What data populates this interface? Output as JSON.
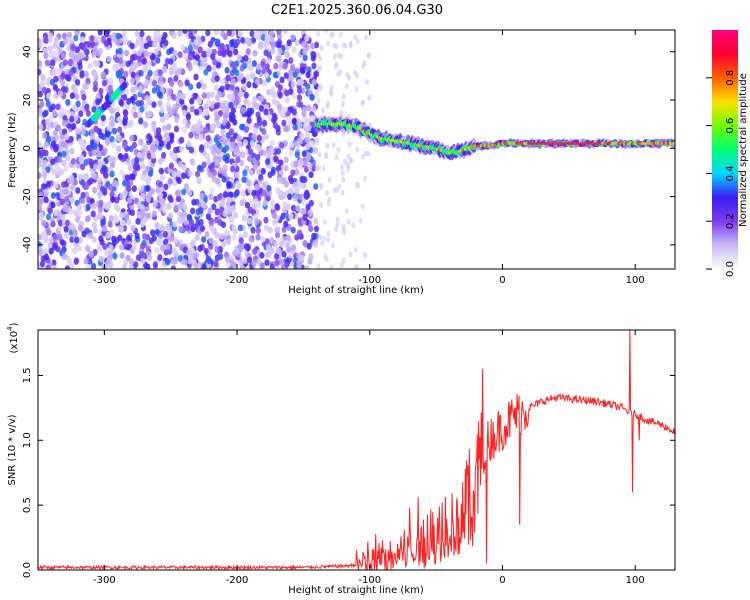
{
  "title": "C2E1.2025.360.06.04.G30",
  "chart_data": [
    {
      "type": "heatmap",
      "xlabel": "Height of straight line (km)",
      "ylabel": "Frequency (Hz)",
      "xlim": [
        -350,
        130
      ],
      "ylim": [
        -50,
        49
      ],
      "xticks": [
        -300,
        -200,
        -100,
        0,
        100
      ],
      "yticks": [
        -40,
        -20,
        0,
        20,
        40
      ],
      "colorbar": {
        "label": "Normalized spectral amplitude",
        "range": [
          0,
          1
        ],
        "ticks": [
          "0.0",
          "0.2",
          "0.4",
          "0.6",
          "0.8"
        ],
        "colors": [
          "#ffffff",
          "#c9b8f5",
          "#7a3cf0",
          "#3c1cf5",
          "#00d8ff",
          "#00ff70",
          "#70ff00",
          "#ffe000",
          "#ff6000",
          "#ff0030",
          "#ff0080"
        ]
      },
      "trace": {
        "x": [
          -140,
          -120,
          -110,
          -100,
          -90,
          -80,
          -70,
          -60,
          -50,
          -40,
          -30,
          -20,
          -10,
          0,
          20,
          40,
          60,
          80,
          100,
          120,
          130
        ],
        "y": [
          10,
          10,
          9,
          6,
          4,
          3,
          2,
          1,
          0,
          -2,
          -1,
          1,
          1,
          2,
          2,
          2,
          2,
          2,
          2,
          2,
          2
        ]
      },
      "diagonal_streak": {
        "x": [
          -312,
          -285
        ],
        "y": [
          10,
          26
        ]
      }
    },
    {
      "type": "line",
      "xlabel": "Height of straight line (km)",
      "ylabel": "SNR (10 * v/v)",
      "scale_label": "(x10",
      "scale_exp": "4",
      "xlim": [
        -350,
        130
      ],
      "ylim": [
        0,
        1.85
      ],
      "xticks": [
        -300,
        -200,
        -100,
        0,
        100
      ],
      "yticks": [
        "0.0",
        "0.5",
        "1.0",
        "1.5"
      ],
      "line_color": "#ff2020",
      "series": [
        {
          "x": [
            -350,
            -300,
            -250,
            -200,
            -150,
            -120,
            -110,
            -100,
            -90,
            -80,
            -70,
            -60,
            -50,
            -40,
            -30,
            -25,
            -20,
            -15,
            -10,
            0,
            10,
            20,
            30,
            40,
            50,
            60,
            70,
            80,
            90,
            95,
            100,
            110,
            120,
            130
          ],
          "y": [
            0.02,
            0.02,
            0.02,
            0.02,
            0.02,
            0.03,
            0.04,
            0.06,
            0.1,
            0.15,
            0.2,
            0.24,
            0.3,
            0.35,
            0.45,
            0.55,
            0.75,
            0.9,
            1.0,
            1.1,
            1.2,
            1.25,
            1.3,
            1.33,
            1.32,
            1.31,
            1.3,
            1.28,
            1.25,
            1.22,
            1.2,
            1.15,
            1.12,
            1.06
          ]
        }
      ],
      "spikes": [
        {
          "x": -15,
          "y": 1.55
        },
        {
          "x": -12,
          "y": 0.05
        },
        {
          "x": 13,
          "y": 0.35
        },
        {
          "x": 96,
          "y": 1.85
        },
        {
          "x": 98,
          "y": 0.6
        },
        {
          "x": 103,
          "y": 1.0
        }
      ]
    }
  ]
}
